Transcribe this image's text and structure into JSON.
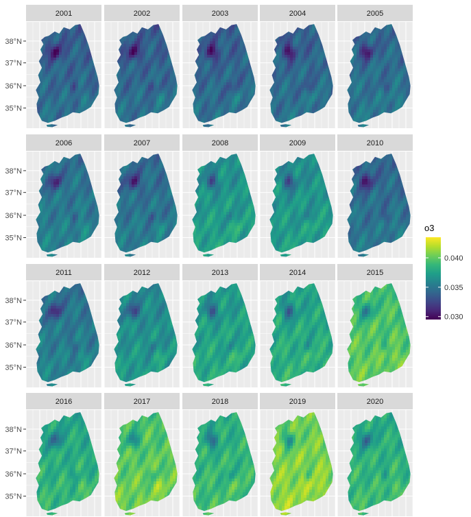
{
  "map": {
    "years": [
      "2001",
      "2002",
      "2003",
      "2004",
      "2005",
      "2006",
      "2007",
      "2008",
      "2009",
      "2010",
      "2011",
      "2012",
      "2013",
      "2014",
      "2015",
      "2016",
      "2017",
      "2018",
      "2019",
      "2020"
    ],
    "mean_level": [
      0.33,
      0.33,
      0.33,
      0.34,
      0.36,
      0.4,
      0.38,
      0.53,
      0.52,
      0.36,
      0.41,
      0.5,
      0.57,
      0.6,
      0.72,
      0.62,
      0.74,
      0.65,
      0.8,
      0.64
    ],
    "lat_labels": [
      "38°N",
      "37°N",
      "36°N",
      "35°N"
    ],
    "legend": {
      "title": "o3",
      "min": 0.0295,
      "max": 0.0435,
      "ticks": [
        0.03,
        0.035,
        0.04
      ],
      "tick_labels": [
        "0.030",
        "0.035",
        "0.040"
      ]
    },
    "colors": {
      "panel_bg": "#ebebeb",
      "grid": "#ffffff",
      "strip_bg": "#d9d9d9",
      "viridis": [
        "#440154",
        "#482878",
        "#3e4989",
        "#31688e",
        "#26828e",
        "#1f9e89",
        "#35b779",
        "#6ece58",
        "#b5de2b",
        "#fde725"
      ]
    }
  }
}
